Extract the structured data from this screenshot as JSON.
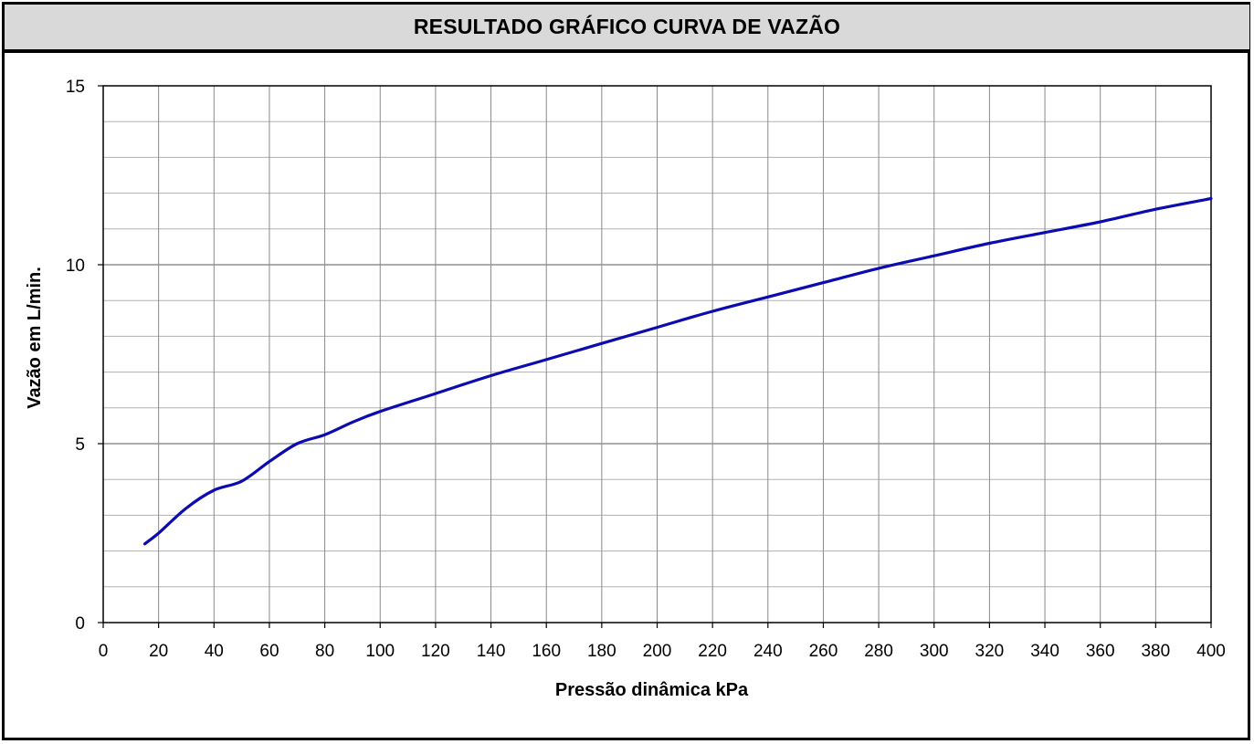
{
  "chart_data": {
    "type": "line",
    "title": "RESULTADO GRÁFICO CURVA DE VAZÃO",
    "xlabel": "Pressão dinâmica kPa",
    "ylabel": "Vazão em L/min.",
    "xlim": [
      0,
      400
    ],
    "ylim": [
      0,
      15
    ],
    "x_ticks": [
      0,
      20,
      40,
      60,
      80,
      100,
      120,
      140,
      160,
      180,
      200,
      220,
      240,
      260,
      280,
      300,
      320,
      340,
      360,
      380,
      400
    ],
    "y_ticks": [
      0,
      5,
      10,
      15
    ],
    "grid": true,
    "line_color": "#0b0bb0",
    "series": [
      {
        "x": [
          15,
          20,
          30,
          40,
          50,
          60,
          70,
          80,
          90,
          100,
          120,
          140,
          160,
          180,
          200,
          220,
          240,
          260,
          280,
          300,
          320,
          340,
          360,
          380,
          400
        ],
        "y": [
          2.2,
          2.5,
          3.2,
          3.7,
          3.95,
          4.5,
          5.0,
          5.25,
          5.6,
          5.9,
          6.4,
          6.9,
          7.35,
          7.8,
          8.25,
          8.7,
          9.1,
          9.5,
          9.9,
          10.25,
          10.6,
          10.9,
          11.2,
          11.55,
          11.85
        ]
      }
    ]
  }
}
